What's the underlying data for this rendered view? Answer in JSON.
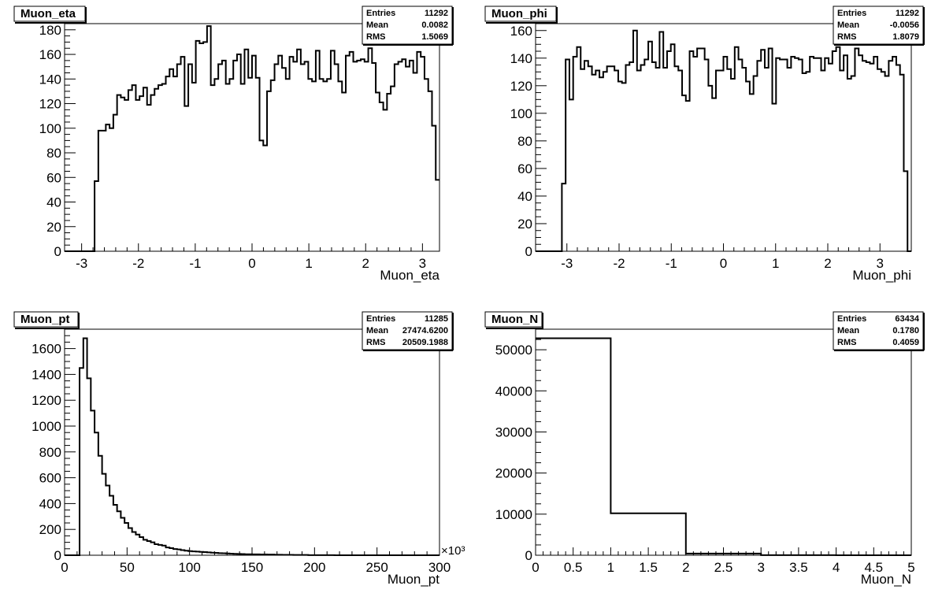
{
  "chart_data": [
    {
      "type": "histogram",
      "title": "Muon_eta",
      "xlabel": "Muon_eta",
      "ylabel": "",
      "xlim": [
        -3.3,
        3.3
      ],
      "ylim": [
        0,
        185
      ],
      "x_ticks": [
        -3,
        -2,
        -1,
        0,
        1,
        2,
        3
      ],
      "y_ticks": [
        0,
        20,
        40,
        60,
        80,
        100,
        120,
        140,
        160,
        180
      ],
      "stats": [
        {
          "label": "Entries",
          "value": "11292"
        },
        {
          "label": "Mean",
          "value": "0.0082"
        },
        {
          "label": "RMS",
          "value": "1.5069"
        }
      ],
      "bin_edges_range": [
        -3.3,
        3.3
      ],
      "bin_count": 100,
      "values": [
        0,
        0,
        0,
        0,
        0,
        0,
        0,
        0,
        57,
        98,
        98,
        103,
        100,
        111,
        127,
        125,
        123,
        131,
        135,
        123,
        126,
        133,
        119,
        127,
        132,
        135,
        136,
        142,
        148,
        142,
        152,
        158,
        118,
        152,
        137,
        171,
        169,
        170,
        183,
        135,
        140,
        152,
        155,
        136,
        140,
        155,
        160,
        136,
        164,
        141,
        159,
        141,
        90,
        86,
        130,
        139,
        152,
        159,
        149,
        140,
        158,
        154,
        164,
        152,
        154,
        140,
        138,
        163,
        140,
        138,
        140,
        163,
        152,
        138,
        129,
        159,
        162,
        154,
        155,
        156,
        154,
        165,
        153,
        129,
        121,
        115,
        128,
        134,
        152,
        154,
        156,
        150,
        155,
        145,
        162,
        158,
        140,
        130,
        102,
        58
      ]
    },
    {
      "type": "histogram",
      "title": "Muon_phi",
      "xlabel": "Muon_phi",
      "ylabel": "",
      "xlim": [
        -3.6,
        3.6
      ],
      "ylim": [
        0,
        165
      ],
      "x_ticks": [
        -3,
        -2,
        -1,
        0,
        1,
        2,
        3
      ],
      "y_ticks": [
        0,
        20,
        40,
        60,
        80,
        100,
        120,
        140,
        160
      ],
      "stats": [
        {
          "label": "Entries",
          "value": "11292"
        },
        {
          "label": "Mean",
          "value": "-0.0056"
        },
        {
          "label": "RMS",
          "value": "1.8079"
        }
      ],
      "bin_edges_range": [
        -3.6,
        3.6
      ],
      "bin_count": 100,
      "values": [
        0,
        0,
        0,
        0,
        0,
        0,
        0,
        49,
        139,
        110,
        141,
        148,
        132,
        138,
        134,
        128,
        131,
        126,
        130,
        134,
        134,
        131,
        123,
        122,
        135,
        137,
        160,
        131,
        135,
        139,
        152,
        137,
        133,
        159,
        133,
        145,
        150,
        134,
        131,
        113,
        109,
        145,
        141,
        147,
        147,
        139,
        120,
        111,
        131,
        131,
        141,
        132,
        125,
        148,
        139,
        133,
        123,
        114,
        127,
        138,
        146,
        133,
        147,
        107,
        140,
        139,
        139,
        133,
        141,
        140,
        139,
        129,
        130,
        141,
        140,
        140,
        131,
        140,
        136,
        145,
        148,
        131,
        142,
        125,
        127,
        147,
        142,
        138,
        137,
        136,
        141,
        132,
        130,
        127,
        138,
        141,
        135,
        128,
        58,
        0
      ]
    },
    {
      "type": "histogram",
      "title": "Muon_pt",
      "xlabel": "Muon_pt",
      "ylabel": "",
      "x_exponent": "×10³",
      "xlim": [
        0,
        300
      ],
      "ylim": [
        0,
        1750
      ],
      "x_ticks": [
        0,
        50,
        100,
        150,
        200,
        250,
        300
      ],
      "y_ticks": [
        0,
        200,
        400,
        600,
        800,
        1000,
        1200,
        1400,
        1600
      ],
      "stats": [
        {
          "label": "Entries",
          "value": "11285"
        },
        {
          "label": "Mean",
          "value": "27474.6200"
        },
        {
          "label": "RMS",
          "value": "20509.1988"
        }
      ],
      "bin_edges_range": [
        0,
        300
      ],
      "bin_count": 100,
      "values": [
        0,
        0,
        0,
        0,
        1450,
        1680,
        1370,
        1120,
        950,
        770,
        630,
        540,
        460,
        390,
        340,
        290,
        250,
        210,
        180,
        160,
        140,
        120,
        110,
        100,
        85,
        80,
        75,
        60,
        55,
        48,
        45,
        40,
        35,
        32,
        30,
        28,
        26,
        24,
        22,
        20,
        18,
        16,
        15,
        14,
        12,
        11,
        10,
        9,
        8,
        8,
        7,
        7,
        6,
        6,
        5,
        5,
        4,
        4,
        3,
        3,
        3,
        2,
        2,
        2,
        2,
        1,
        1,
        1,
        1,
        1,
        1,
        1,
        0,
        0,
        0,
        0,
        0,
        0,
        0,
        0,
        0,
        0,
        0,
        0,
        0,
        0,
        0,
        0,
        0,
        0,
        0,
        0,
        0,
        0,
        0,
        0,
        0,
        0,
        0,
        0
      ]
    },
    {
      "type": "histogram",
      "title": "Muon_N",
      "xlabel": "Muon_N",
      "ylabel": "",
      "xlim": [
        0,
        5
      ],
      "ylim": [
        0,
        55000
      ],
      "x_ticks": [
        0,
        0.5,
        1,
        1.5,
        2,
        2.5,
        3,
        3.5,
        4,
        4.5,
        5
      ],
      "y_ticks": [
        0,
        10000,
        20000,
        30000,
        40000,
        50000
      ],
      "stats": [
        {
          "label": "Entries",
          "value": "63434"
        },
        {
          "label": "Mean",
          "value": "0.1780"
        },
        {
          "label": "RMS",
          "value": "0.4059"
        }
      ],
      "bin_edges_range": [
        0,
        5
      ],
      "bin_count": 5,
      "values": [
        52800,
        10200,
        400,
        34,
        0
      ]
    }
  ]
}
